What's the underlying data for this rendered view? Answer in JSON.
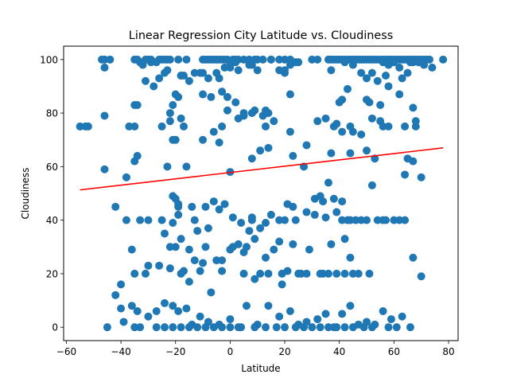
{
  "chart_data": {
    "type": "scatter",
    "title": "Linear Regression City Latitude vs. Cloudiness",
    "xlabel": "Latitude",
    "ylabel": "Cloudiness",
    "xlim": [
      -61,
      83.5
    ],
    "ylim": [
      -5,
      105
    ],
    "xticks": [
      -60,
      -40,
      -20,
      0,
      20,
      40,
      60,
      80
    ],
    "yticks": [
      0,
      20,
      40,
      60,
      80,
      100
    ],
    "grid": false,
    "point_color": "#1f77b4",
    "regression": {
      "color": "#ff0000",
      "x": [
        -55,
        78
      ],
      "y": [
        51.3,
        67
      ]
    },
    "series": [
      {
        "x": [
          -55,
          -53,
          -52,
          -47,
          -46,
          -44,
          -35,
          -34,
          -33,
          -32,
          -31,
          -30,
          -29,
          -27,
          -26,
          -25,
          -24,
          -23,
          -22,
          -19,
          -16,
          -10,
          -9,
          -8,
          -7,
          -6,
          -5,
          -4,
          -3,
          -2,
          -1,
          0,
          1,
          2,
          3,
          5,
          7,
          9,
          10,
          12,
          15,
          18,
          20,
          22,
          25,
          30,
          32,
          36,
          37,
          38,
          39,
          40,
          41,
          42,
          43,
          44,
          45,
          46,
          47,
          48,
          49,
          50,
          51,
          52,
          53,
          54,
          55,
          56,
          57,
          58,
          59,
          60,
          61,
          62,
          63,
          64,
          65,
          66,
          67,
          68,
          69,
          70,
          71,
          72,
          73,
          78,
          -46,
          -33,
          -31,
          -29,
          -26,
          -24,
          -23,
          -18,
          -17,
          -15,
          -13,
          -11,
          -10,
          -8,
          -5,
          -4,
          -2,
          0,
          2,
          3,
          7,
          8,
          10,
          15,
          18,
          20,
          22,
          24,
          37,
          42,
          45,
          48,
          50,
          52,
          54,
          56,
          58,
          60,
          62,
          63,
          65,
          67,
          69,
          71,
          74,
          -46,
          -35,
          -34,
          -28,
          -22,
          -21,
          -20,
          -19,
          -18,
          -10,
          -7,
          -3,
          -1,
          2,
          5,
          8,
          12,
          13,
          14,
          20,
          22,
          38,
          41,
          43,
          50,
          51,
          55,
          57,
          58,
          62,
          66,
          67,
          68,
          -37,
          -35,
          -25,
          -22,
          -20,
          -18,
          -17,
          -10,
          -6,
          -3,
          -1,
          3,
          5,
          9,
          13,
          16,
          22,
          32,
          35,
          40,
          44,
          45,
          48,
          52,
          55,
          58,
          64,
          68,
          -46,
          -38,
          -35,
          -34,
          -23,
          -21,
          -19,
          -16,
          -4,
          0,
          8,
          11,
          14,
          23,
          28,
          37,
          39,
          41,
          44,
          50,
          52,
          56,
          65,
          67,
          70,
          -42,
          -38,
          -33,
          -30,
          -25,
          -21,
          -19,
          -13,
          -8,
          -4,
          1,
          4,
          8,
          11,
          13,
          15,
          18,
          20,
          24,
          28,
          31,
          33,
          35,
          38,
          41,
          44,
          50,
          54,
          57,
          60,
          62,
          64,
          -21,
          -20,
          -19,
          -14,
          -12,
          -9,
          -6,
          -2,
          6,
          8,
          21,
          23,
          27,
          31,
          34,
          36,
          39,
          41,
          43,
          46,
          48,
          53,
          56,
          64,
          -36,
          -30,
          -24,
          -22,
          -20,
          -18,
          -17,
          -15,
          -13,
          -11,
          -9,
          -5,
          -3,
          0,
          3,
          5,
          7,
          9,
          11,
          13,
          16,
          18,
          19,
          23,
          26,
          29,
          34,
          37,
          39,
          42,
          44,
          -40,
          -35,
          -31,
          -26,
          -22,
          -18,
          -15,
          -10,
          -7,
          -3,
          1,
          5,
          9,
          14,
          19,
          21,
          25,
          28,
          33,
          36,
          42,
          45,
          47,
          51,
          -42,
          -40,
          -36,
          -34,
          -30,
          -27,
          -24,
          -21,
          -19,
          -16,
          -14,
          -11,
          -8,
          -4,
          0,
          3,
          6,
          10,
          14,
          18,
          22,
          25,
          28,
          32,
          35,
          38,
          41,
          44,
          47,
          50,
          53,
          56,
          59,
          63,
          67,
          70,
          -45,
          -39,
          -35,
          -33,
          -27,
          -24,
          -21,
          -18,
          -15,
          -12,
          -9,
          -6,
          -3,
          0,
          4,
          9,
          13,
          17,
          20,
          24,
          27,
          30,
          33,
          36,
          39,
          42,
          45,
          49,
          52,
          58,
          61,
          66
        ],
        "y": [
          75,
          75,
          75,
          100,
          100,
          100,
          100,
          100,
          99,
          98,
          100,
          100,
          100,
          99,
          100,
          100,
          100,
          100,
          100,
          100,
          100,
          100,
          100,
          100,
          100,
          100,
          100,
          100,
          100,
          100,
          100,
          97,
          100,
          100,
          100,
          100,
          100,
          100,
          100,
          100,
          100,
          100,
          100,
          100,
          99,
          100,
          100,
          100,
          100,
          100,
          100,
          100,
          100,
          100,
          100,
          100,
          100,
          100,
          100,
          100,
          100,
          100,
          100,
          100,
          100,
          100,
          100,
          100,
          100,
          100,
          100,
          100,
          100,
          100,
          100,
          100,
          100,
          100,
          100,
          100,
          100,
          100,
          100,
          100,
          100,
          100,
          97,
          99,
          92,
          99,
          93,
          95,
          96,
          94,
          94,
          92,
          95,
          95,
          95,
          93,
          95,
          93,
          97,
          99,
          99,
          96,
          98,
          98,
          96,
          100,
          96,
          95,
          98,
          99,
          96,
          99,
          98,
          95,
          93,
          95,
          92,
          99,
          98,
          99,
          97,
          93,
          95,
          99,
          99,
          98,
          97,
          79,
          83,
          83,
          90,
          80,
          83,
          87,
          86,
          94,
          87,
          86,
          88,
          86,
          84,
          80,
          80,
          79,
          81,
          80,
          96,
          87,
          75,
          85,
          89,
          85,
          84,
          83,
          94,
          90,
          87,
          99,
          82,
          75,
          75,
          75,
          75,
          77,
          70,
          78,
          75,
          70,
          73,
          75,
          81,
          78,
          79,
          81,
          75,
          77,
          73,
          77,
          78,
          84,
          75,
          73,
          72,
          78,
          77,
          75,
          75,
          77,
          59,
          56,
          62,
          64,
          60,
          70,
          45,
          60,
          69,
          58,
          63,
          66,
          67,
          64,
          68,
          65,
          76,
          73,
          65,
          66,
          53,
          75,
          63,
          62,
          56,
          45,
          40,
          40,
          40,
          40,
          39,
          42,
          40,
          37,
          44,
          41,
          39,
          40,
          37,
          39,
          42,
          40,
          40,
          40,
          43,
          48,
          49,
          41,
          48,
          40,
          40,
          40,
          40,
          40,
          40,
          40,
          40,
          49,
          48,
          46,
          45,
          36,
          45,
          47,
          46,
          30,
          41,
          46,
          45,
          60,
          42,
          47,
          54,
          43,
          47,
          40,
          40,
          40,
          63,
          40,
          57,
          29,
          23,
          35,
          30,
          30,
          33,
          21,
          29,
          25,
          21,
          30,
          25,
          25,
          29,
          31,
          28,
          36,
          33,
          20,
          26,
          29,
          32,
          20,
          31,
          20,
          29,
          20,
          31,
          20,
          33,
          26,
          16,
          20,
          20,
          23,
          22,
          20,
          17,
          24,
          13,
          21,
          30,
          20,
          18,
          20,
          16,
          21,
          20,
          20,
          20,
          20,
          20,
          20,
          20,
          20,
          12,
          7,
          8,
          6,
          4,
          6,
          9,
          8,
          6,
          7,
          1,
          4,
          2,
          1,
          3,
          0,
          8,
          1,
          8,
          4,
          6,
          1,
          2,
          3,
          5,
          0,
          5,
          8,
          1,
          2,
          1,
          6,
          3,
          4,
          26,
          19,
          0,
          2,
          0,
          0,
          0,
          0,
          0,
          0,
          0,
          0,
          0,
          0,
          0,
          0,
          0,
          0,
          0,
          0,
          0,
          0,
          0,
          0,
          0,
          0,
          0,
          0,
          0,
          0,
          0,
          0,
          0,
          0
        ]
      }
    ]
  }
}
